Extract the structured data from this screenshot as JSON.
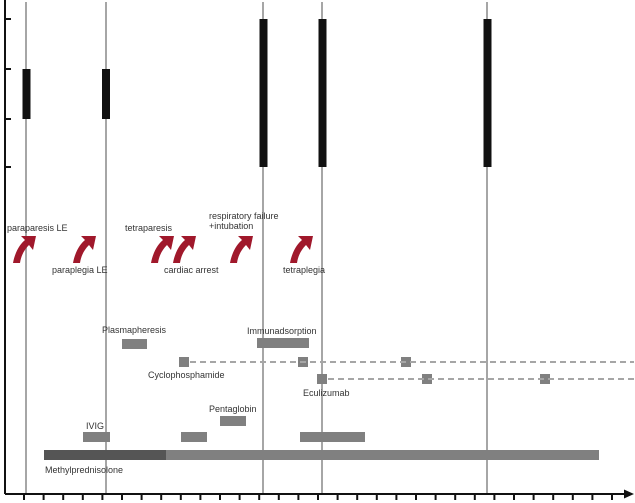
{
  "colors": {
    "axis": "#111111",
    "event_line": "#9a9a9a",
    "attack_bar": "#111111",
    "treatment_bar": "#808080",
    "methylpred_early": "#555555",
    "dashed": "#9a9a9a",
    "arrow": "#a0182b"
  },
  "events": [
    {
      "id": "paraparesis-le",
      "label": "paraparesis LE"
    },
    {
      "id": "paraplegia-le",
      "label": "paraplegia LE"
    },
    {
      "id": "tetraparesis",
      "label": "tetraparesis"
    },
    {
      "id": "cardiac-arrest",
      "label": "cardiac arrest"
    },
    {
      "id": "respiratory-failure",
      "label_lines": [
        "respiratory failure",
        "+intubation"
      ]
    },
    {
      "id": "tetraplegia",
      "label": "tetraplegia"
    }
  ],
  "treatments": [
    {
      "id": "plasmapheresis",
      "label": "Plasmapheresis"
    },
    {
      "id": "immunadsorption",
      "label": "Immunadsorption"
    },
    {
      "id": "cyclophosphamide",
      "label": "Cyclophosphamide"
    },
    {
      "id": "eculizumab",
      "label": "Eculizumab"
    },
    {
      "id": "pentaglobin",
      "label": "Pentaglobin"
    },
    {
      "id": "ivig",
      "label": "IVIG"
    },
    {
      "id": "methylprednisolone",
      "label": "Methylprednisolone"
    }
  ]
}
